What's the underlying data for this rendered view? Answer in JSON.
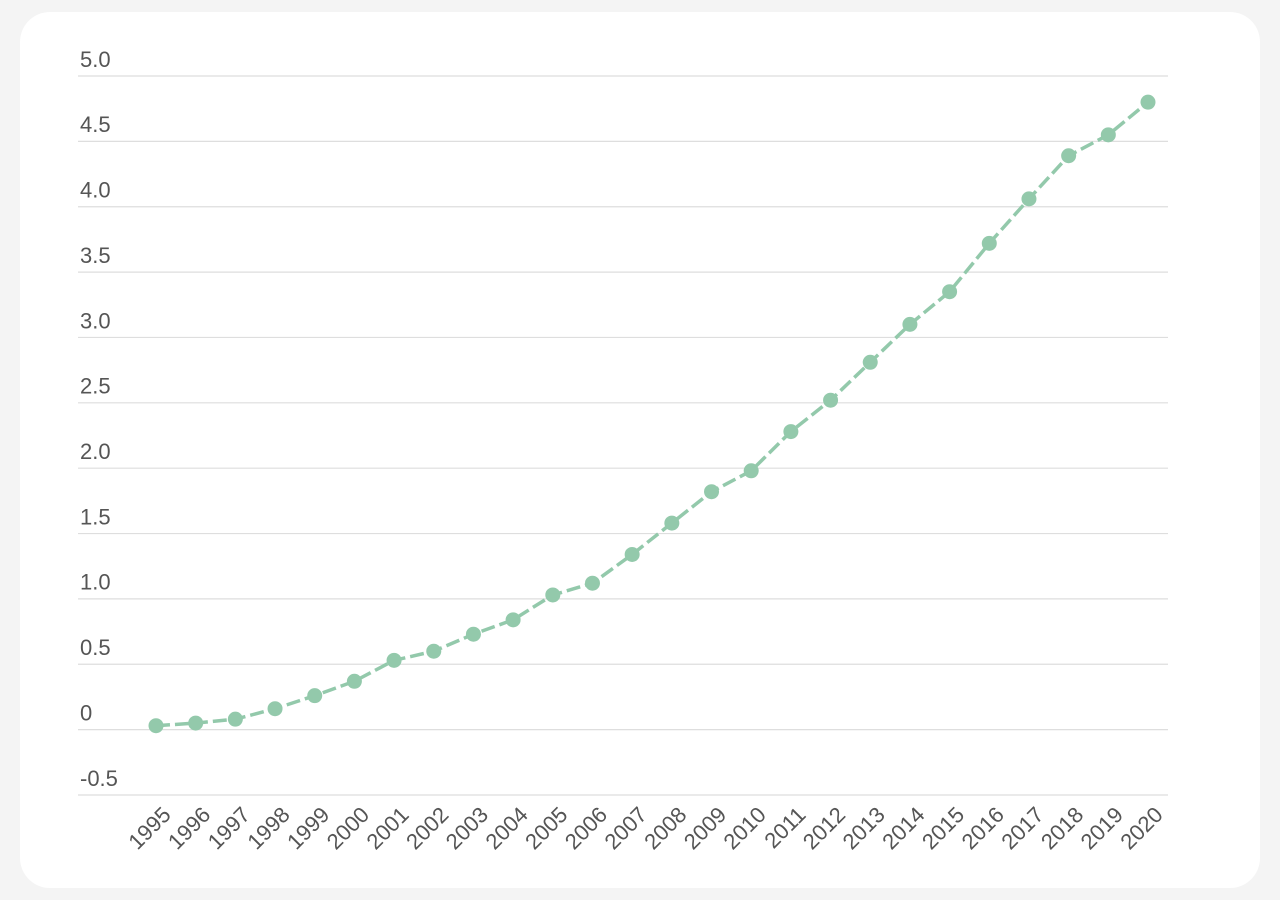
{
  "chart_data": {
    "type": "line",
    "categories": [
      "1995",
      "1996",
      "1997",
      "1998",
      "1999",
      "2000",
      "2001",
      "2002",
      "2003",
      "2004",
      "2005",
      "2006",
      "2007",
      "2008",
      "2009",
      "2010",
      "2011",
      "2012",
      "2013",
      "2014",
      "2015",
      "2016",
      "2017",
      "2018",
      "2019",
      "2020"
    ],
    "values": [
      0.03,
      0.05,
      0.08,
      0.16,
      0.26,
      0.37,
      0.53,
      0.6,
      0.73,
      0.84,
      1.03,
      1.12,
      1.34,
      1.58,
      1.82,
      1.98,
      2.28,
      2.52,
      2.81,
      3.1,
      3.35,
      3.72,
      4.06,
      4.39,
      4.55,
      4.8
    ],
    "color": "#93c9ab",
    "ylim": [
      -0.5,
      5
    ],
    "yticks": [
      -0.5,
      0,
      0.5,
      {
        "value": 1,
        "label": "1.0"
      },
      1.5,
      {
        "value": 2,
        "label": "2.0"
      },
      2.5,
      {
        "value": 3,
        "label": "3.0"
      },
      3.5,
      {
        "value": 4,
        "label": "4.0"
      },
      4.5,
      {
        "value": 5,
        "label": "5.0"
      }
    ],
    "grid": true
  }
}
